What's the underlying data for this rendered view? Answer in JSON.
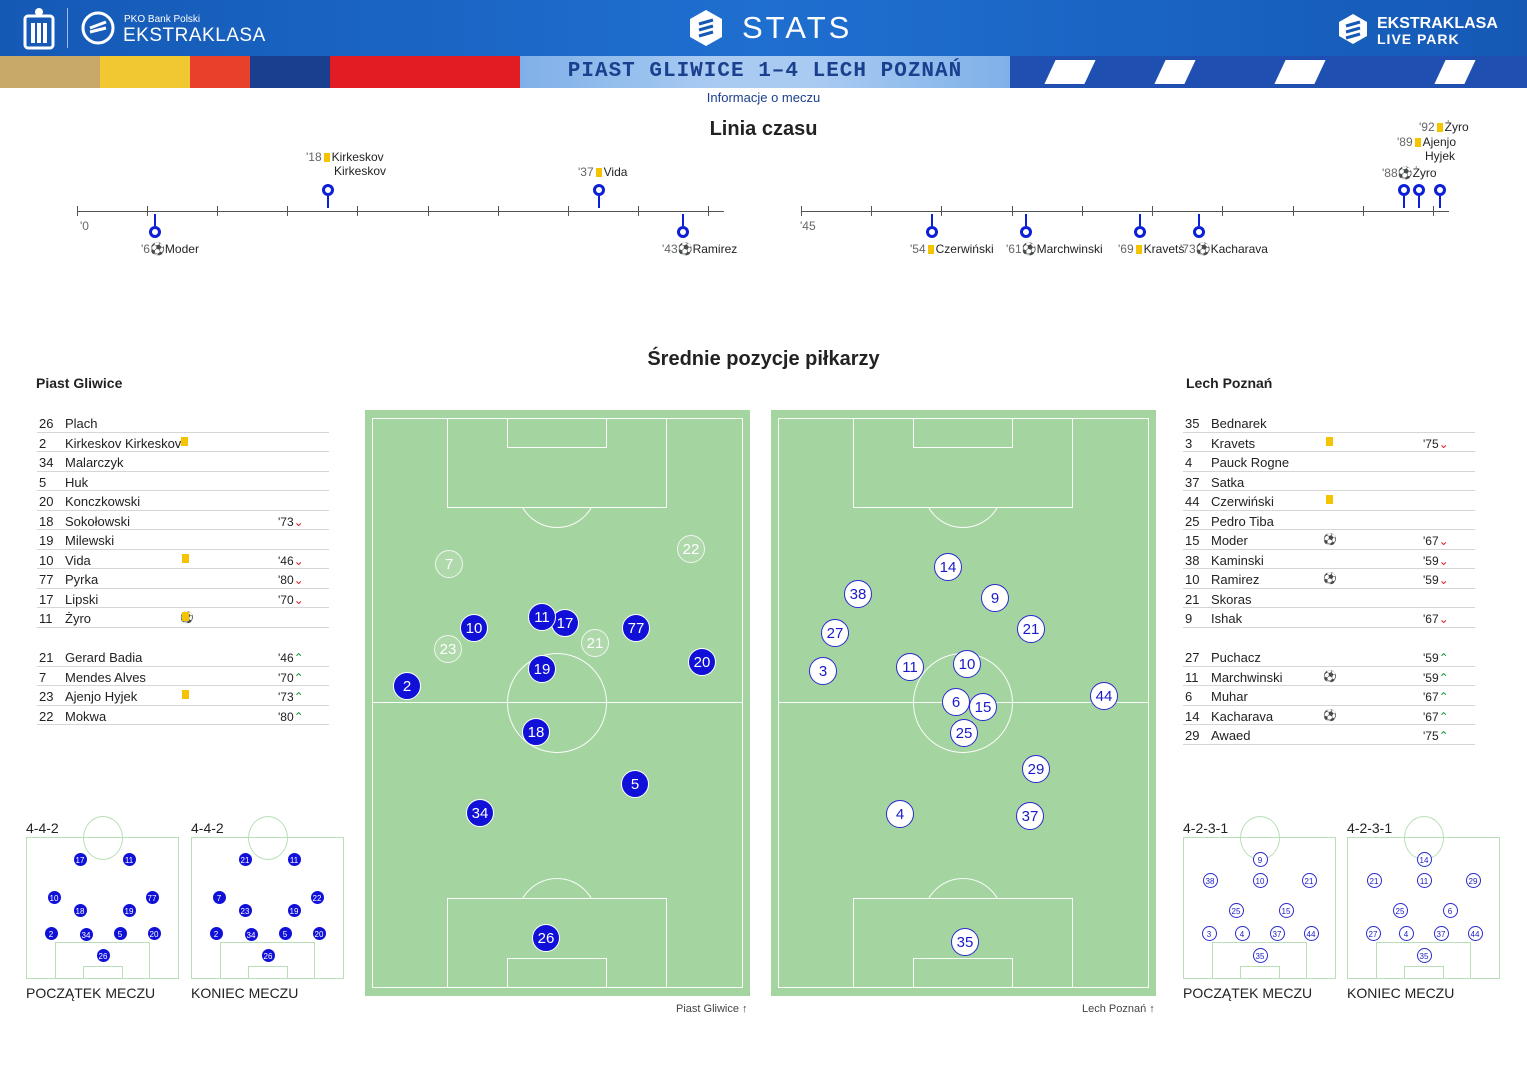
{
  "header": {
    "sponsor": "PKO Bank Polski",
    "league": "EKSTRAKLASA",
    "stats_title": "STATS",
    "right_brand_top": "EKSTRAKLASA",
    "right_brand_bottom": "LIVE PARK",
    "colors": {
      "header_blue": "#1559b5",
      "pin_blue": "#0d1fd6",
      "yellow_card": "#f5c400",
      "pitch_green": "#a4d4a0"
    }
  },
  "match": {
    "title": "PIAST GLIWICE 1–4  LECH POZNAŃ",
    "info_link": "Informacje o meczu"
  },
  "timeline": {
    "title": "Linia czasu",
    "first_half_start": "'0",
    "second_half_start": "'45",
    "events": [
      {
        "minute": "'18",
        "player": "Kirkeskov",
        "player2": "Kirkeskov",
        "type": "yellow"
      },
      {
        "minute": "'37",
        "player": "Vida",
        "type": "yellow"
      },
      {
        "minute": "'6",
        "player": "Moder",
        "type": "goal"
      },
      {
        "minute": "'43",
        "player": "Ramirez",
        "type": "goal"
      },
      {
        "minute": "'54",
        "player": "Czerwiński",
        "type": "yellow"
      },
      {
        "minute": "'61",
        "player": "Marchwinski",
        "type": "goal"
      },
      {
        "minute": "'69",
        "player": "Kravets",
        "type": "yellow"
      },
      {
        "minute": "'73",
        "player": "Kacharava",
        "type": "goal"
      },
      {
        "minute": "'88",
        "player": "Żyro",
        "type": "goal"
      },
      {
        "minute": "'89",
        "player": "Ajenjo",
        "player2": "Hyjek",
        "type": "yellow"
      },
      {
        "minute": "'92",
        "player": "Żyro",
        "type": "yellow"
      }
    ]
  },
  "positions": {
    "title": "Średnie pozycje piłkarzy",
    "home_team": "Piast Gliwice",
    "away_team": "Lech Poznań",
    "home_caption": "Piast Gliwice",
    "away_caption": "Lech Poznań"
  },
  "home_roster": [
    {
      "num": "26",
      "name": "Plach"
    },
    {
      "num": "2",
      "name": "Kirkeskov Kirkeskov",
      "yellow": true
    },
    {
      "num": "34",
      "name": "Malarczyk"
    },
    {
      "num": "5",
      "name": "Huk"
    },
    {
      "num": "20",
      "name": "Konczkowski"
    },
    {
      "num": "18",
      "name": "Sokołowski",
      "min": "'73",
      "dir": "down"
    },
    {
      "num": "19",
      "name": "Milewski"
    },
    {
      "num": "10",
      "name": "Vida",
      "yellow": true,
      "min": "'46",
      "dir": "down"
    },
    {
      "num": "77",
      "name": "Pyrka",
      "min": "'80",
      "dir": "down"
    },
    {
      "num": "17",
      "name": "Lipski",
      "min": "'70",
      "dir": "down"
    },
    {
      "num": "11",
      "name": "Żyro",
      "goal": true,
      "yellow": true
    }
  ],
  "home_subs": [
    {
      "num": "21",
      "name": "Gerard Badia",
      "min": "'46",
      "dir": "up"
    },
    {
      "num": "7",
      "name": "Mendes Alves",
      "min": "'70",
      "dir": "up"
    },
    {
      "num": "23",
      "name": "Ajenjo Hyjek",
      "yellow": true,
      "min": "'73",
      "dir": "up"
    },
    {
      "num": "22",
      "name": "Mokwa",
      "min": "'80",
      "dir": "up"
    }
  ],
  "away_roster": [
    {
      "num": "35",
      "name": "Bednarek"
    },
    {
      "num": "3",
      "name": "Kravets",
      "yellow": true,
      "min": "'75",
      "dir": "down"
    },
    {
      "num": "4",
      "name": "Pauck Rogne"
    },
    {
      "num": "37",
      "name": "Satka"
    },
    {
      "num": "44",
      "name": "Czerwiński",
      "yellow": true
    },
    {
      "num": "25",
      "name": "Pedro Tiba"
    },
    {
      "num": "15",
      "name": "Moder",
      "goal": true,
      "min": "'67",
      "dir": "down"
    },
    {
      "num": "38",
      "name": "Kaminski",
      "min": "'59",
      "dir": "down"
    },
    {
      "num": "10",
      "name": "Ramirez",
      "goal": true,
      "min": "'59",
      "dir": "down"
    },
    {
      "num": "21",
      "name": "Skoras"
    },
    {
      "num": "9",
      "name": "Ishak",
      "min": "'67",
      "dir": "down"
    }
  ],
  "away_subs": [
    {
      "num": "27",
      "name": "Puchacz",
      "min": "'59",
      "dir": "up"
    },
    {
      "num": "11",
      "name": "Marchwinski",
      "goal": true,
      "min": "'59",
      "dir": "up"
    },
    {
      "num": "6",
      "name": "Muhar",
      "min": "'67",
      "dir": "up"
    },
    {
      "num": "14",
      "name": "Kacharava",
      "goal": true,
      "min": "'67",
      "dir": "up"
    },
    {
      "num": "29",
      "name": "Awaed",
      "min": "'75",
      "dir": "up"
    }
  ],
  "home_pitch_players": {
    "starters": [
      "26",
      "2",
      "34",
      "5",
      "20",
      "18",
      "19",
      "10",
      "77",
      "17",
      "11"
    ],
    "subs": [
      "21",
      "7",
      "23",
      "22"
    ]
  },
  "away_pitch_players": [
    "35",
    "3",
    "4",
    "37",
    "44",
    "25",
    "15",
    "38",
    "10",
    "21",
    "9",
    "27",
    "11",
    "6",
    "14",
    "29"
  ],
  "formations": {
    "home_start": {
      "shape": "4-4-2",
      "label": "POCZĄTEK MECZU"
    },
    "home_end": {
      "shape": "4-4-2",
      "label": "KONIEC MECZU"
    },
    "away_start": {
      "shape": "4-2-3-1",
      "label": "POCZĄTEK MECZU"
    },
    "away_end": {
      "shape": "4-2-3-1",
      "label": "KONIEC MECZU"
    }
  }
}
